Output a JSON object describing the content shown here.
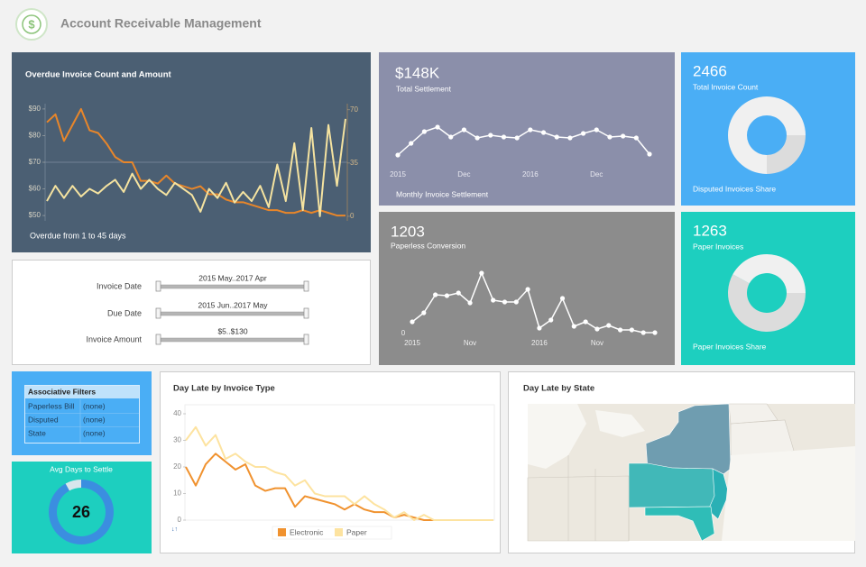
{
  "header": {
    "title": "Account Receivable Management"
  },
  "overdue": {
    "type": "line",
    "title": "Overdue Invoice Count and Amount",
    "footer": "Overdue from 1 to 45 days",
    "ylim": [
      48,
      92
    ],
    "yticks": [
      {
        "value": 50,
        "label": "$50"
      },
      {
        "value": 60,
        "label": "$60"
      },
      {
        "value": 70,
        "label": "$70"
      },
      {
        "value": 80,
        "label": "$80"
      },
      {
        "value": 90,
        "label": "$90"
      }
    ],
    "y2lim": [
      -3,
      74
    ],
    "y2ticks": [
      0,
      35,
      70
    ],
    "series": [
      {
        "color": "#e8862a",
        "values": [
          85,
          88,
          78,
          84,
          90,
          82,
          81,
          77,
          72,
          70,
          70,
          63,
          63,
          62,
          65,
          62,
          61,
          60,
          61,
          58,
          58,
          56,
          55,
          55,
          54,
          53,
          52,
          52,
          51,
          51,
          52,
          51,
          52,
          51,
          50,
          50
        ]
      },
      {
        "color": "#f5e3a0",
        "axis": "y2",
        "values": [
          10,
          20,
          12,
          20,
          13,
          18,
          15,
          20,
          24,
          16,
          28,
          18,
          24,
          18,
          14,
          22,
          18,
          14,
          3,
          18,
          12,
          22,
          9,
          16,
          10,
          20,
          6,
          34,
          10,
          48,
          4,
          58,
          0,
          60,
          20,
          64
        ]
      }
    ]
  },
  "settlement": {
    "type": "line",
    "kpi": "$148K",
    "subtitle": "Total Settlement",
    "footer": "Monthly Invoice Settlement",
    "categories": [
      "2015",
      null,
      null,
      null,
      null,
      "Dec",
      null,
      null,
      null,
      null,
      "2016",
      null,
      null,
      null,
      null,
      "Dec",
      null,
      null,
      null,
      null
    ],
    "ylim": [
      0,
      50
    ],
    "series": [
      {
        "color": "#ffffff",
        "values": [
          8,
          21,
          34,
          39,
          28,
          36,
          27,
          30,
          28,
          27,
          36,
          33,
          28,
          27,
          32,
          36,
          28,
          29,
          27,
          9
        ]
      }
    ]
  },
  "invoice_count": {
    "type": "pie",
    "kpi": "2466",
    "subtitle": "Total Invoice Count",
    "footer": "Disputed Invoices Share",
    "values": [
      25,
      75
    ],
    "colors": [
      "#dcdcdc",
      "#f0f0f0"
    ]
  },
  "paperless": {
    "type": "line",
    "kpi": "1203",
    "subtitle": "Paperless Conversion",
    "categories": [
      "2015",
      null,
      null,
      null,
      null,
      "Nov",
      null,
      null,
      null,
      null,
      null,
      "2016",
      null,
      null,
      null,
      null,
      "Nov",
      null,
      null,
      null,
      null,
      null
    ],
    "ylim": [
      0,
      80
    ],
    "yticks": [
      0
    ],
    "series": [
      {
        "color": "#ffffff",
        "values": [
          13,
          23,
          43,
          42,
          45,
          34,
          67,
          37,
          35,
          35,
          49,
          6,
          15,
          39,
          8,
          13,
          5,
          9,
          4,
          4,
          1,
          1
        ]
      }
    ]
  },
  "paper_invoices": {
    "type": "pie",
    "kpi": "1263",
    "subtitle": "Paper Invoices",
    "footer": "Paper Invoices Share",
    "values": [
      58,
      42
    ],
    "colors": [
      "#dcdcdc",
      "#f0f0f0"
    ]
  },
  "sliders": [
    {
      "label": "Invoice Date",
      "range": "2015 May..2017 Apr"
    },
    {
      "label": "Due Date",
      "range": "2015 Jun..2017 May"
    },
    {
      "label": "Invoice Amount",
      "range": "$5..$130"
    }
  ],
  "filters": {
    "title": "Associative Filters",
    "rows": [
      [
        "Paperless Bill",
        "(none)"
      ],
      [
        "Disputed",
        "(none)"
      ],
      [
        "State",
        "(none)"
      ]
    ]
  },
  "avg_days": {
    "type": "pie",
    "title": "Avg Days to Settle",
    "kpi": "26",
    "values": [
      92,
      8
    ],
    "colors": [
      "#3b8ee0",
      "#d9e6ec"
    ]
  },
  "day_late_type": {
    "type": "line",
    "title": "Day Late by Invoice Type",
    "ylim": [
      0,
      40
    ],
    "yticks": [
      0,
      10,
      20,
      30,
      40
    ],
    "series": [
      {
        "name": "Electronic",
        "color": "#f0922f",
        "values": [
          20,
          13,
          21,
          25,
          22,
          19,
          21,
          13,
          11,
          12,
          12,
          5,
          9,
          8,
          7,
          6,
          4,
          6,
          4,
          3,
          3,
          1,
          2,
          1,
          0,
          0,
          0,
          0,
          0,
          0,
          0,
          0
        ]
      },
      {
        "name": "Paper",
        "color": "#fde3a0",
        "values": [
          30,
          35,
          28,
          32,
          23,
          25,
          22,
          20,
          20,
          18,
          17,
          13,
          15,
          10,
          9,
          9,
          9,
          6,
          9,
          6,
          4,
          1,
          3,
          0,
          2,
          0,
          0,
          0,
          0,
          0,
          0,
          0
        ]
      }
    ]
  },
  "day_late_state": {
    "title": "Day Late by State"
  }
}
